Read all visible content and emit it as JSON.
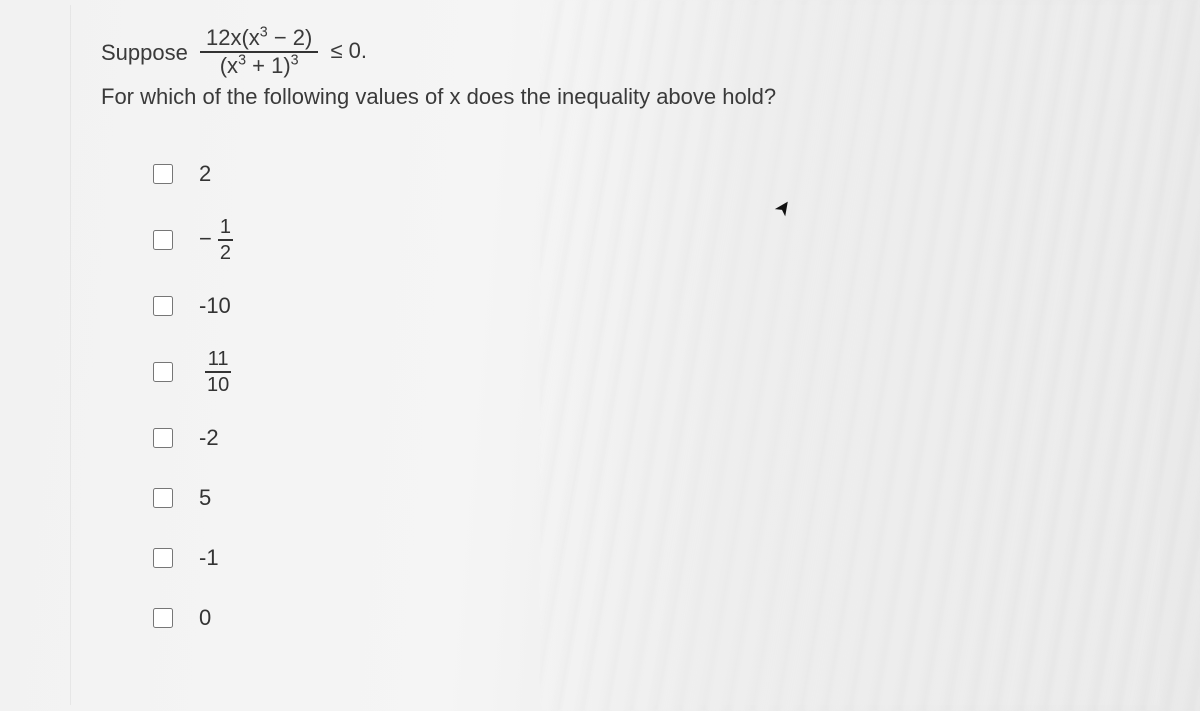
{
  "question": {
    "suppose": "Suppose",
    "numerator": "12x(x³ − 2)",
    "denominator": "(x³ + 1)³",
    "rel": "≤ 0.",
    "followup": "For which of the following values of x does the inequality above hold?"
  },
  "options": [
    {
      "type": "plain",
      "text": "2"
    },
    {
      "type": "negfrac",
      "neg": "−",
      "num": "1",
      "den": "2"
    },
    {
      "type": "plain",
      "text": "-10"
    },
    {
      "type": "frac",
      "num": "11",
      "den": "10"
    },
    {
      "type": "plain",
      "text": "-2"
    },
    {
      "type": "plain",
      "text": "5"
    },
    {
      "type": "plain",
      "text": "-1"
    },
    {
      "type": "plain",
      "text": "0"
    }
  ],
  "colors": {
    "text": "#3a3a3a",
    "rule": "#333333",
    "background": "#f2f2f2"
  }
}
